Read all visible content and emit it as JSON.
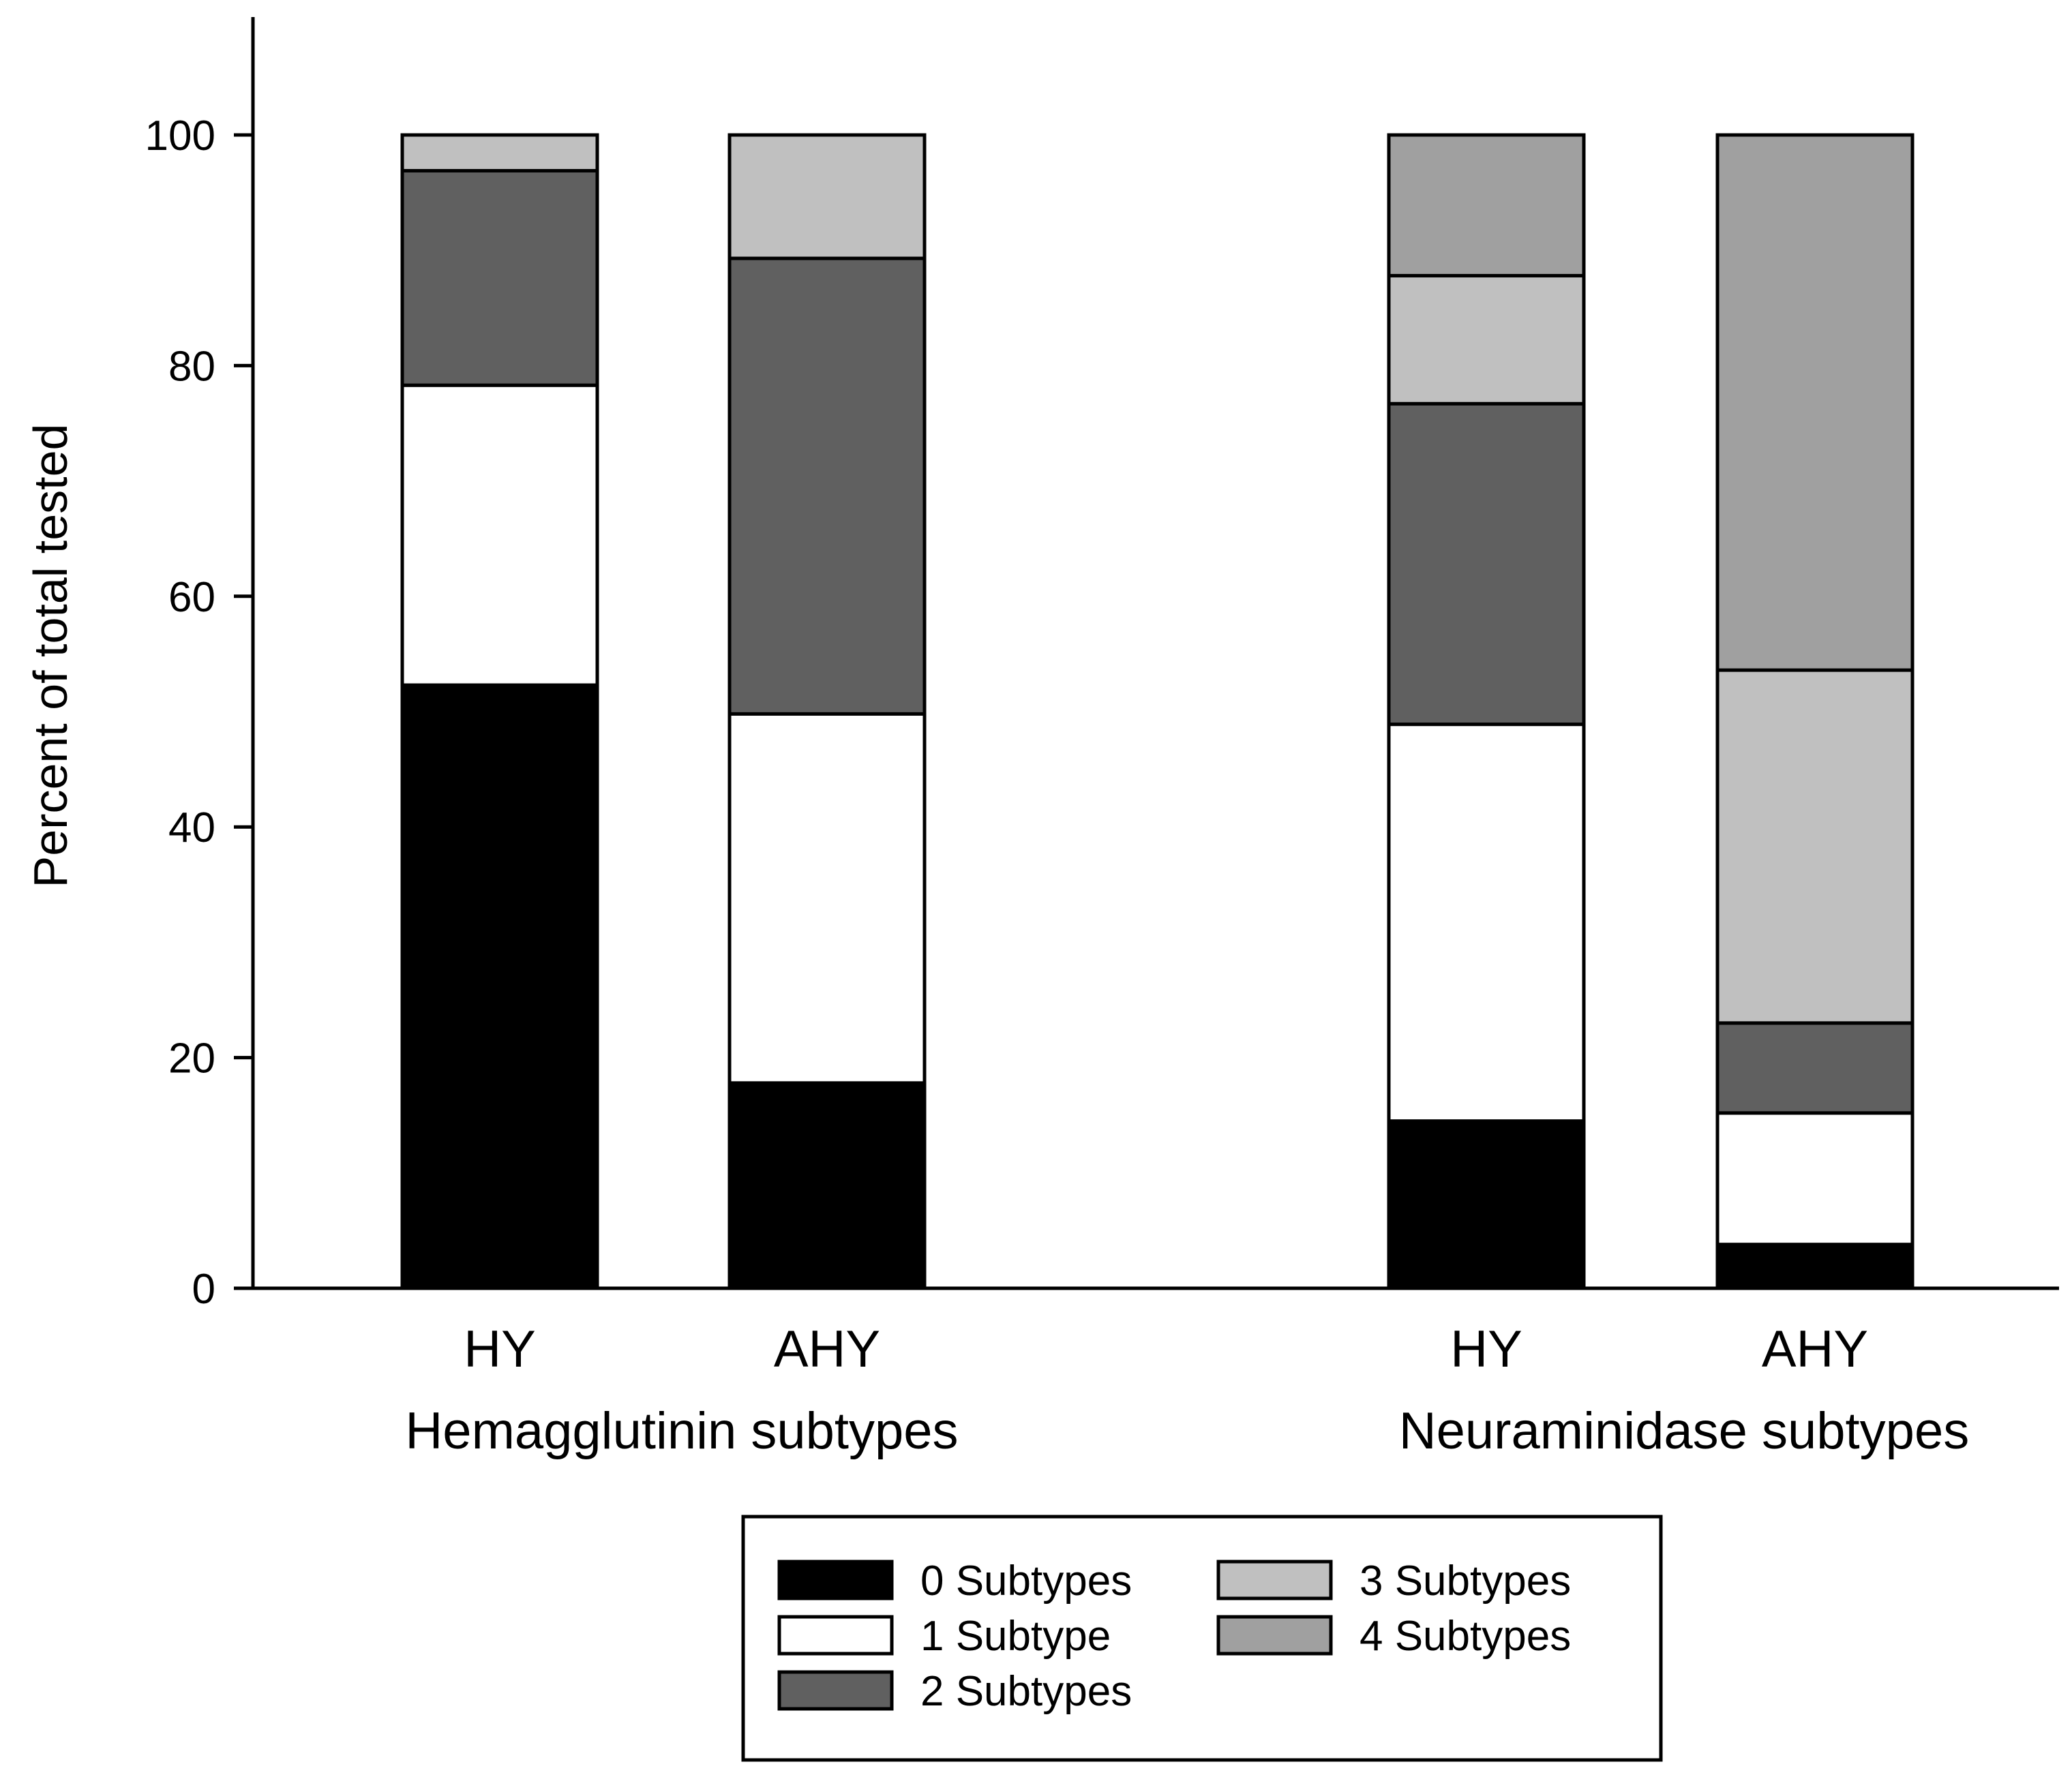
{
  "chart_data": {
    "type": "bar",
    "stacked": true,
    "ylabel": "Percent of total tested",
    "ylim": [
      0,
      110
    ],
    "yticks": [
      0,
      20,
      40,
      60,
      80,
      100
    ],
    "grid": false,
    "groups": [
      {
        "label": "Hemagglutinin subtypes",
        "categories": [
          "HY",
          "AHY"
        ]
      },
      {
        "label": "Neuraminidase subtypes",
        "categories": [
          "HY",
          "AHY"
        ]
      }
    ],
    "series": [
      {
        "name": "0 Subtypes",
        "color": "#000000",
        "values": [
          52.3,
          17.8,
          14.5,
          3.8
        ]
      },
      {
        "name": "1 Subtype",
        "color": "#ffffff",
        "values": [
          26.0,
          32.0,
          34.4,
          11.4
        ]
      },
      {
        "name": "2 Subtypes",
        "color": "#606060",
        "values": [
          18.6,
          39.5,
          27.8,
          7.8
        ]
      },
      {
        "name": "3 Subtypes",
        "color": "#c0c0c0",
        "values": [
          3.1,
          10.7,
          11.1,
          30.6
        ]
      },
      {
        "name": "4 Subtypes",
        "color": "#a0a0a0",
        "values": [
          0,
          0,
          12.2,
          46.4
        ]
      }
    ],
    "legend": {
      "position": "bottom-center",
      "columns": [
        [
          "0 Subtypes",
          "1 Subtype",
          "2 Subtypes"
        ],
        [
          "3 Subtypes",
          "4 Subtypes"
        ]
      ]
    }
  }
}
